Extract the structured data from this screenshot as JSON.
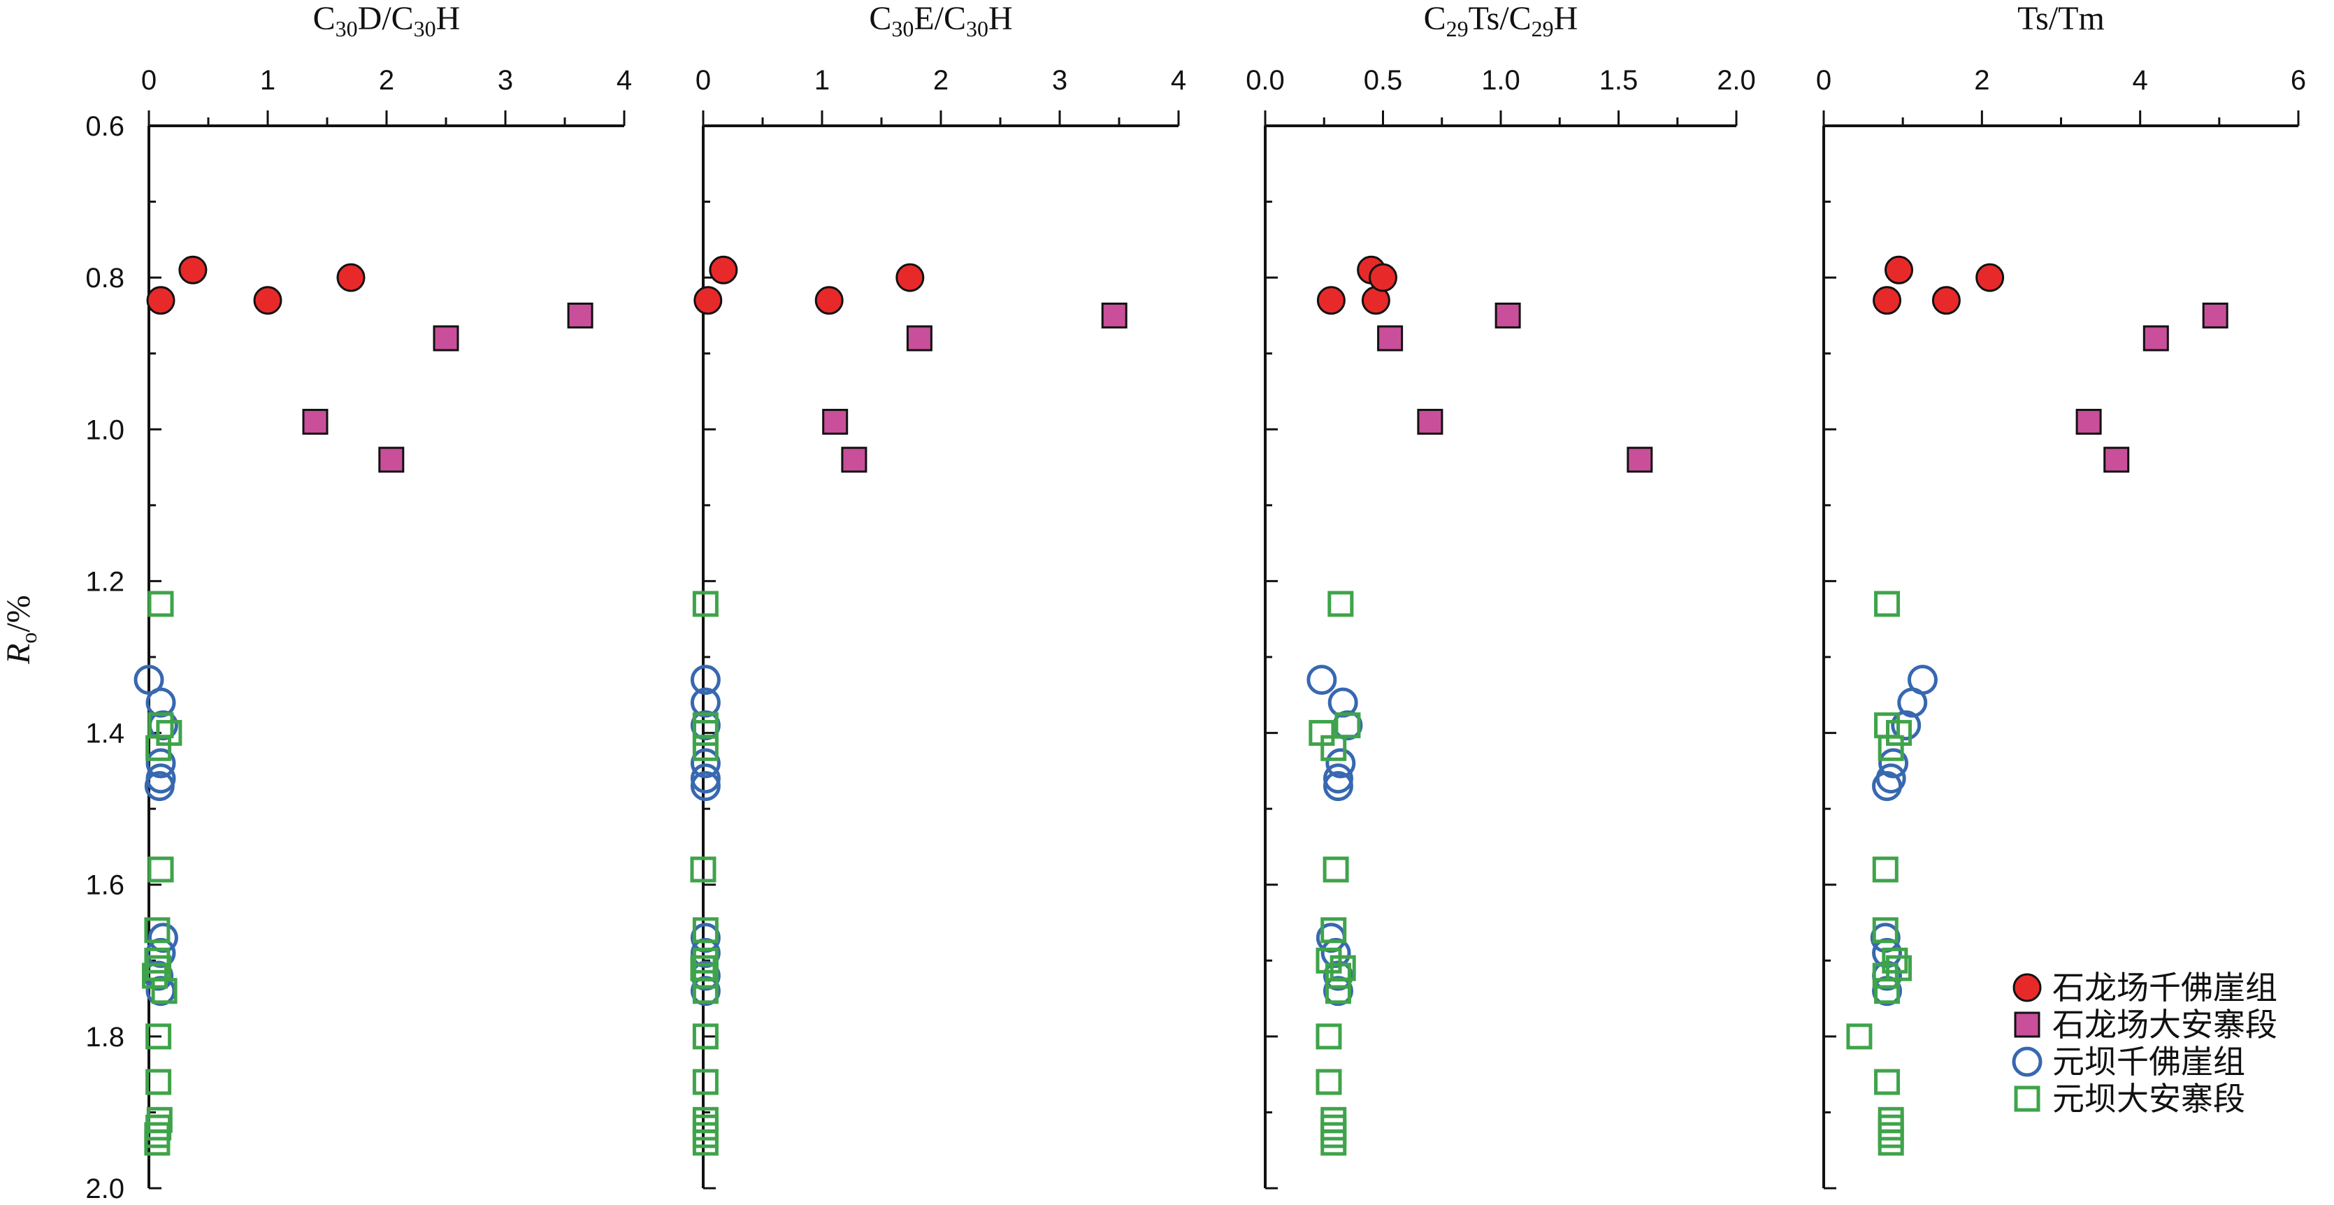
{
  "colors": {
    "shilongchang_qianfoya": "#e8292a",
    "shilongchang_daanzhai": "#c94f9a",
    "yuanba_qianfoya": "#3768b0",
    "yuanba_daanzhai": "#3fa34a"
  },
  "y_axis": {
    "label_main": "R",
    "label_sub": "o",
    "label_tail": "/%",
    "ticks": [
      "0.6",
      "0.8",
      "1.0",
      "1.2",
      "1.4",
      "1.6",
      "1.8",
      "2.0"
    ]
  },
  "legend": [
    {
      "label": "石龙场千佛崖组",
      "marker": "filled-circle",
      "color_key": "shilongchang_qianfoya"
    },
    {
      "label": "石龙场大安寨段",
      "marker": "filled-square",
      "color_key": "shilongchang_daanzhai"
    },
    {
      "label": "元坝千佛崖组",
      "marker": "open-circle",
      "color_key": "yuanba_qianfoya"
    },
    {
      "label": "元坝大安寨段",
      "marker": "open-square",
      "color_key": "yuanba_daanzhai"
    }
  ],
  "panels": [
    {
      "title_parts": [
        [
          "C",
          ""
        ],
        [
          "30",
          "sub"
        ],
        [
          "D/C",
          ""
        ],
        [
          "30",
          "sub"
        ],
        [
          "H",
          ""
        ]
      ],
      "ticks": [
        "0",
        "1",
        "2",
        "3",
        "4"
      ]
    },
    {
      "title_parts": [
        [
          "C",
          ""
        ],
        [
          "30",
          "sub"
        ],
        [
          "E/C",
          ""
        ],
        [
          "30",
          "sub"
        ],
        [
          "H",
          ""
        ]
      ],
      "ticks": [
        "0",
        "1",
        "2",
        "3",
        "4"
      ]
    },
    {
      "title_parts": [
        [
          "C",
          ""
        ],
        [
          "29",
          "sub"
        ],
        [
          "Ts/C",
          ""
        ],
        [
          "29",
          "sub"
        ],
        [
          "H",
          ""
        ]
      ],
      "ticks": [
        "0.0",
        "0.5",
        "1.0",
        "1.5",
        "2.0"
      ]
    },
    {
      "title_parts": [
        [
          "Ts/Tm",
          ""
        ]
      ],
      "ticks": [
        "0",
        "2",
        "4",
        "6"
      ]
    }
  ],
  "chart_data": [
    {
      "type": "scatter",
      "title": "C30D/C30H",
      "xlim": [
        0,
        4
      ],
      "ylim": [
        2.0,
        0.6
      ],
      "ylabel": "Ro/%",
      "series": [
        {
          "name": "石龙场千佛崖组",
          "x": [
            0.1,
            0.37,
            1.0,
            1.7
          ],
          "y": [
            0.83,
            0.79,
            0.83,
            0.8
          ]
        },
        {
          "name": "石龙场大安寨段",
          "x": [
            3.63,
            2.5,
            1.4,
            2.04
          ],
          "y": [
            0.85,
            0.88,
            0.99,
            1.04
          ]
        },
        {
          "name": "元坝千佛崖组",
          "x": [
            0.0,
            0.1,
            0.12,
            0.1,
            0.1,
            0.09,
            0.12,
            0.1,
            0.08,
            0.1
          ],
          "y": [
            1.33,
            1.36,
            1.39,
            1.44,
            1.46,
            1.47,
            1.67,
            1.69,
            1.72,
            1.74
          ]
        },
        {
          "name": "元坝大安寨段",
          "x": [
            0.1,
            0.1,
            0.17,
            0.08,
            0.1,
            0.07,
            0.07,
            0.08,
            0.05,
            0.13,
            0.08,
            0.08,
            0.09,
            0.08,
            0.07,
            0.07
          ],
          "y": [
            1.23,
            1.39,
            1.4,
            1.42,
            1.58,
            1.66,
            1.7,
            1.71,
            1.72,
            1.74,
            1.8,
            1.86,
            1.91,
            1.92,
            1.93,
            1.94
          ]
        }
      ]
    },
    {
      "type": "scatter",
      "title": "C30E/C30H",
      "xlim": [
        0,
        4
      ],
      "ylim": [
        2.0,
        0.6
      ],
      "series": [
        {
          "name": "石龙场千佛崖组",
          "x": [
            0.04,
            0.17,
            1.06,
            1.74
          ],
          "y": [
            0.83,
            0.79,
            0.83,
            0.8
          ]
        },
        {
          "name": "石龙场大安寨段",
          "x": [
            3.46,
            1.82,
            1.11,
            1.27
          ],
          "y": [
            0.85,
            0.88,
            0.99,
            1.04
          ]
        },
        {
          "name": "元坝千佛崖组",
          "x": [
            0.02,
            0.02,
            0.02,
            0.02,
            0.02,
            0.02,
            0.02,
            0.02,
            0.02,
            0.02
          ],
          "y": [
            1.33,
            1.36,
            1.39,
            1.44,
            1.46,
            1.47,
            1.67,
            1.69,
            1.72,
            1.74
          ]
        },
        {
          "name": "元坝大安寨段",
          "x": [
            0.02,
            0.02,
            0.02,
            0.02,
            0.0,
            0.02,
            0.02,
            0.0,
            0.02,
            0.02,
            0.02,
            0.02,
            0.02,
            0.02,
            0.02,
            0.02
          ],
          "y": [
            1.23,
            1.39,
            1.4,
            1.42,
            1.58,
            1.66,
            1.7,
            1.71,
            1.72,
            1.74,
            1.8,
            1.86,
            1.91,
            1.92,
            1.93,
            1.94
          ]
        }
      ]
    },
    {
      "type": "scatter",
      "title": "C29Ts/C29H",
      "xlim": [
        0,
        2
      ],
      "ylim": [
        2.0,
        0.6
      ],
      "series": [
        {
          "name": "石龙场千佛崖组",
          "x": [
            0.28,
            0.45,
            0.47,
            0.5
          ],
          "y": [
            0.83,
            0.79,
            0.83,
            0.8
          ]
        },
        {
          "name": "石龙场大安寨段",
          "x": [
            1.03,
            0.53,
            0.7,
            1.59
          ],
          "y": [
            0.85,
            0.88,
            0.99,
            1.04
          ]
        },
        {
          "name": "元坝千佛崖组",
          "x": [
            0.24,
            0.33,
            0.35,
            0.32,
            0.31,
            0.31,
            0.28,
            0.3,
            0.31,
            0.31
          ],
          "y": [
            1.33,
            1.36,
            1.39,
            1.44,
            1.46,
            1.47,
            1.67,
            1.69,
            1.72,
            1.74
          ]
        },
        {
          "name": "元坝大安寨段",
          "x": [
            0.32,
            0.35,
            0.24,
            0.29,
            0.3,
            0.29,
            0.27,
            0.33,
            0.31,
            0.31,
            0.27,
            0.27,
            0.29,
            0.29,
            0.29,
            0.29
          ],
          "y": [
            1.23,
            1.39,
            1.4,
            1.42,
            1.58,
            1.66,
            1.7,
            1.71,
            1.72,
            1.74,
            1.8,
            1.86,
            1.91,
            1.92,
            1.93,
            1.94
          ]
        }
      ]
    },
    {
      "type": "scatter",
      "title": "Ts/Tm",
      "xlim": [
        0,
        6
      ],
      "ylim": [
        2.0,
        0.6
      ],
      "series": [
        {
          "name": "石龙场千佛崖组",
          "x": [
            0.8,
            0.95,
            1.55,
            2.1
          ],
          "y": [
            0.83,
            0.79,
            0.83,
            0.8
          ]
        },
        {
          "name": "石龙场大安寨段",
          "x": [
            4.95,
            4.2,
            3.35,
            3.7
          ],
          "y": [
            0.85,
            0.88,
            0.99,
            1.04
          ]
        },
        {
          "name": "元坝千佛崖组",
          "x": [
            1.25,
            1.12,
            1.04,
            0.88,
            0.85,
            0.8,
            0.78,
            0.8,
            0.8,
            0.8
          ],
          "y": [
            1.33,
            1.36,
            1.39,
            1.44,
            1.46,
            1.47,
            1.67,
            1.69,
            1.72,
            1.74
          ]
        },
        {
          "name": "元坝大安寨段",
          "x": [
            0.8,
            0.8,
            0.95,
            0.85,
            0.78,
            0.78,
            0.9,
            0.95,
            0.78,
            0.8,
            0.45,
            0.8,
            0.85,
            0.85,
            0.85,
            0.85
          ],
          "y": [
            1.23,
            1.39,
            1.4,
            1.42,
            1.58,
            1.66,
            1.7,
            1.71,
            1.72,
            1.74,
            1.8,
            1.86,
            1.91,
            1.92,
            1.93,
            1.94
          ]
        }
      ]
    }
  ]
}
